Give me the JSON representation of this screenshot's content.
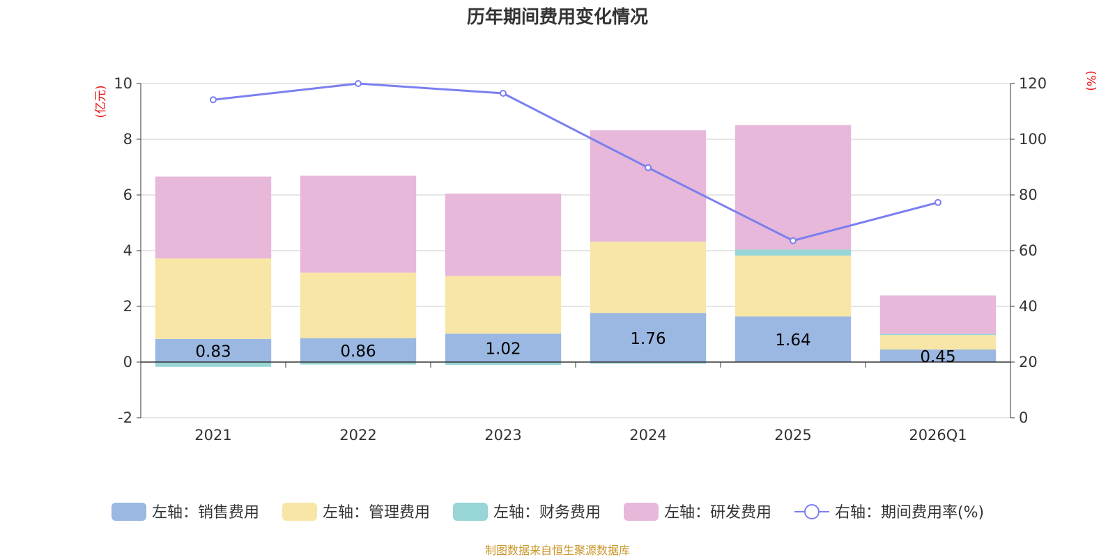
{
  "chart_data": {
    "type": "bar",
    "title": "历年期间费用变化情况",
    "categories": [
      "2021",
      "2022",
      "2023",
      "2024",
      "2025",
      "2026Q1"
    ],
    "left_axis": {
      "unit": "(亿元)",
      "ticks": [
        "-2",
        "0",
        "2",
        "4",
        "6",
        "8",
        "10"
      ],
      "ylim": [
        -2,
        10
      ]
    },
    "right_axis": {
      "unit": "(%)",
      "ticks": [
        "0",
        "20",
        "40",
        "60",
        "80",
        "100",
        "120"
      ],
      "ylim": [
        0,
        120
      ]
    },
    "series": [
      {
        "name": "左轴：销售费用",
        "axis": "left",
        "stack": true,
        "color": "#9bb8e2",
        "values": [
          0.83,
          0.86,
          1.02,
          1.76,
          1.64,
          0.45
        ]
      },
      {
        "name": "左轴：管理费用",
        "axis": "left",
        "stack": true,
        "color": "#f8e6a6",
        "values": [
          2.89,
          2.35,
          2.07,
          2.56,
          2.18,
          0.52
        ]
      },
      {
        "name": "左轴：财务费用",
        "axis": "left",
        "stack": true,
        "color": "#97d5d6",
        "values": [
          -0.17,
          -0.09,
          -0.1,
          -0.06,
          0.22,
          0.04
        ]
      },
      {
        "name": "左轴：研发费用",
        "axis": "left",
        "stack": true,
        "color": "#e7b8d9",
        "values": [
          2.94,
          3.48,
          2.96,
          4.0,
          4.47,
          1.38
        ]
      },
      {
        "name": "右轴：期间费用率(%)",
        "axis": "right",
        "type": "line",
        "color": "#7b7ff0",
        "values": [
          114.2,
          120.0,
          116.5,
          89.8,
          63.6,
          77.3
        ]
      }
    ],
    "data_labels": [
      "0.83",
      "0.86",
      "1.02",
      "1.76",
      "1.64",
      "0.45"
    ],
    "grid": true,
    "legend_position": "bottom"
  },
  "source": "制图数据来自恒生聚源数据库"
}
